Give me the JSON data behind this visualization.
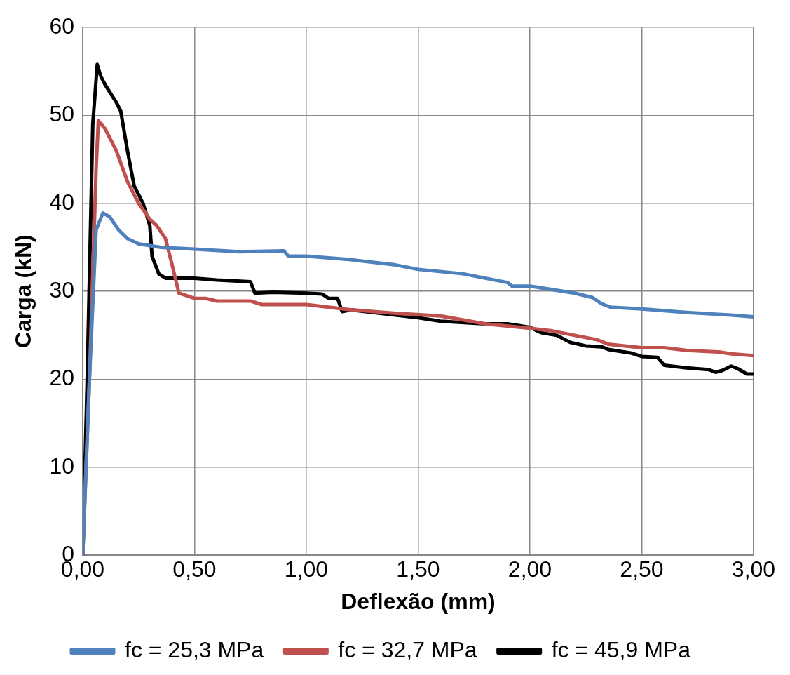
{
  "chart_data": {
    "type": "line",
    "xlabel": "Deflexão (mm)",
    "ylabel": "Carga (kN)",
    "xlim": [
      0,
      3
    ],
    "xticks": [
      {
        "value": 0,
        "label": "0,00"
      },
      {
        "value": 0.5,
        "label": "0,50"
      },
      {
        "value": 1,
        "label": "1,00"
      },
      {
        "value": 1.5,
        "label": "1,50"
      },
      {
        "value": 2,
        "label": "2,00"
      },
      {
        "value": 2.5,
        "label": "2,50"
      },
      {
        "value": 3,
        "label": "3,00"
      }
    ],
    "ylim": [
      0,
      60
    ],
    "yticks": [
      0,
      10,
      20,
      30,
      40,
      50,
      60
    ],
    "grid": true,
    "legend": "bottom",
    "marker": "none",
    "line_style": "solid",
    "series": [
      {
        "name": "fc = 25,3 MPa",
        "color": "#4f81bd",
        "x": [
          0,
          0.03,
          0.06,
          0.09,
          0.12,
          0.16,
          0.2,
          0.25,
          0.35,
          0.5,
          0.7,
          0.9,
          0.92,
          1.0,
          1.2,
          1.4,
          1.5,
          1.7,
          1.9,
          1.92,
          2.0,
          2.2,
          2.28,
          2.32,
          2.36,
          2.5,
          2.7,
          2.9,
          3.0
        ],
        "values": [
          0,
          20,
          37,
          38.9,
          38.5,
          37,
          36,
          35.4,
          35,
          34.8,
          34.5,
          34.6,
          34,
          34,
          33.6,
          33,
          32.5,
          32,
          31,
          30.6,
          30.6,
          29.8,
          29.3,
          28.6,
          28.2,
          28,
          27.6,
          27.3,
          27.1
        ]
      },
      {
        "name": "fc = 32,7 MPa",
        "color": "#c0504d",
        "x": [
          0,
          0.03,
          0.06,
          0.07,
          0.1,
          0.15,
          0.2,
          0.25,
          0.3,
          0.33,
          0.37,
          0.4,
          0.43,
          0.5,
          0.55,
          0.6,
          0.75,
          0.8,
          1.0,
          1.2,
          1.4,
          1.6,
          1.8,
          2.0,
          2.1,
          2.2,
          2.3,
          2.35,
          2.5,
          2.6,
          2.7,
          2.85,
          2.9,
          3.0
        ],
        "values": [
          0,
          20,
          44,
          49.4,
          48.5,
          46,
          42.5,
          40,
          38.2,
          37.5,
          36,
          33,
          29.8,
          29.2,
          29.2,
          28.9,
          28.9,
          28.5,
          28.5,
          27.9,
          27.5,
          27.2,
          26.3,
          25.8,
          25.5,
          25,
          24.5,
          24,
          23.6,
          23.6,
          23.3,
          23.1,
          22.9,
          22.7
        ]
      },
      {
        "name": "fc = 45,9 MPa",
        "color": "#000000",
        "x": [
          0,
          0.02,
          0.045,
          0.065,
          0.08,
          0.1,
          0.15,
          0.17,
          0.2,
          0.23,
          0.27,
          0.3,
          0.31,
          0.34,
          0.37,
          0.45,
          0.5,
          0.6,
          0.75,
          0.77,
          0.85,
          1.0,
          1.07,
          1.1,
          1.14,
          1.16,
          1.2,
          1.5,
          1.6,
          1.8,
          1.9,
          2.0,
          2.05,
          2.12,
          2.18,
          2.25,
          2.32,
          2.35,
          2.45,
          2.5,
          2.57,
          2.6,
          2.7,
          2.8,
          2.83,
          2.86,
          2.9,
          2.93,
          2.97,
          3.0
        ],
        "values": [
          0,
          20,
          49,
          55.8,
          54.5,
          53.5,
          51.5,
          50.5,
          46,
          42,
          40,
          37.5,
          34,
          32,
          31.5,
          31.5,
          31.5,
          31.3,
          31.1,
          29.8,
          29.9,
          29.8,
          29.7,
          29.2,
          29.2,
          27.7,
          27.9,
          27,
          26.6,
          26.3,
          26.3,
          25.9,
          25.3,
          25,
          24.2,
          23.8,
          23.7,
          23.4,
          23,
          22.6,
          22.5,
          21.6,
          21.3,
          21.1,
          20.8,
          21,
          21.5,
          21.2,
          20.6,
          20.6
        ]
      }
    ]
  }
}
